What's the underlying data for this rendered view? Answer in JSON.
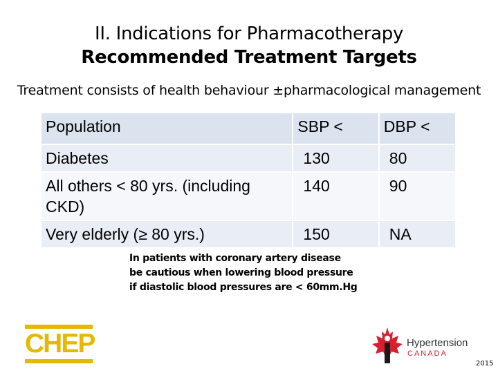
{
  "title": {
    "line1": "II. Indications for Pharmacotherapy",
    "line2": "Recommended Treatment Targets"
  },
  "subtitle": "Treatment consists of health behaviour ±pharmacological management",
  "table": {
    "headers": [
      "Population",
      "SBP <",
      "DBP <"
    ],
    "rows": [
      {
        "population": "Diabetes",
        "sbp": "130",
        "dbp": "80"
      },
      {
        "population": "All others < 80 yrs. (including CKD)",
        "sbp": "140",
        "dbp": "90"
      },
      {
        "population": "Very elderly (≥ 80 yrs.)",
        "sbp": "150",
        "dbp": "NA"
      }
    ]
  },
  "note": {
    "line1": "In patients with coronary artery disease",
    "line2": "be cautious when lowering blood pressure",
    "line3": "if diastolic blood pressures are < 60mm.Hg"
  },
  "logos": {
    "chep": "CHEP",
    "chep_color": "#e6b800",
    "hypertension_name": "Hypertension",
    "hypertension_country": "CANADA",
    "maple_color": "#d7202f"
  },
  "year": "2015"
}
